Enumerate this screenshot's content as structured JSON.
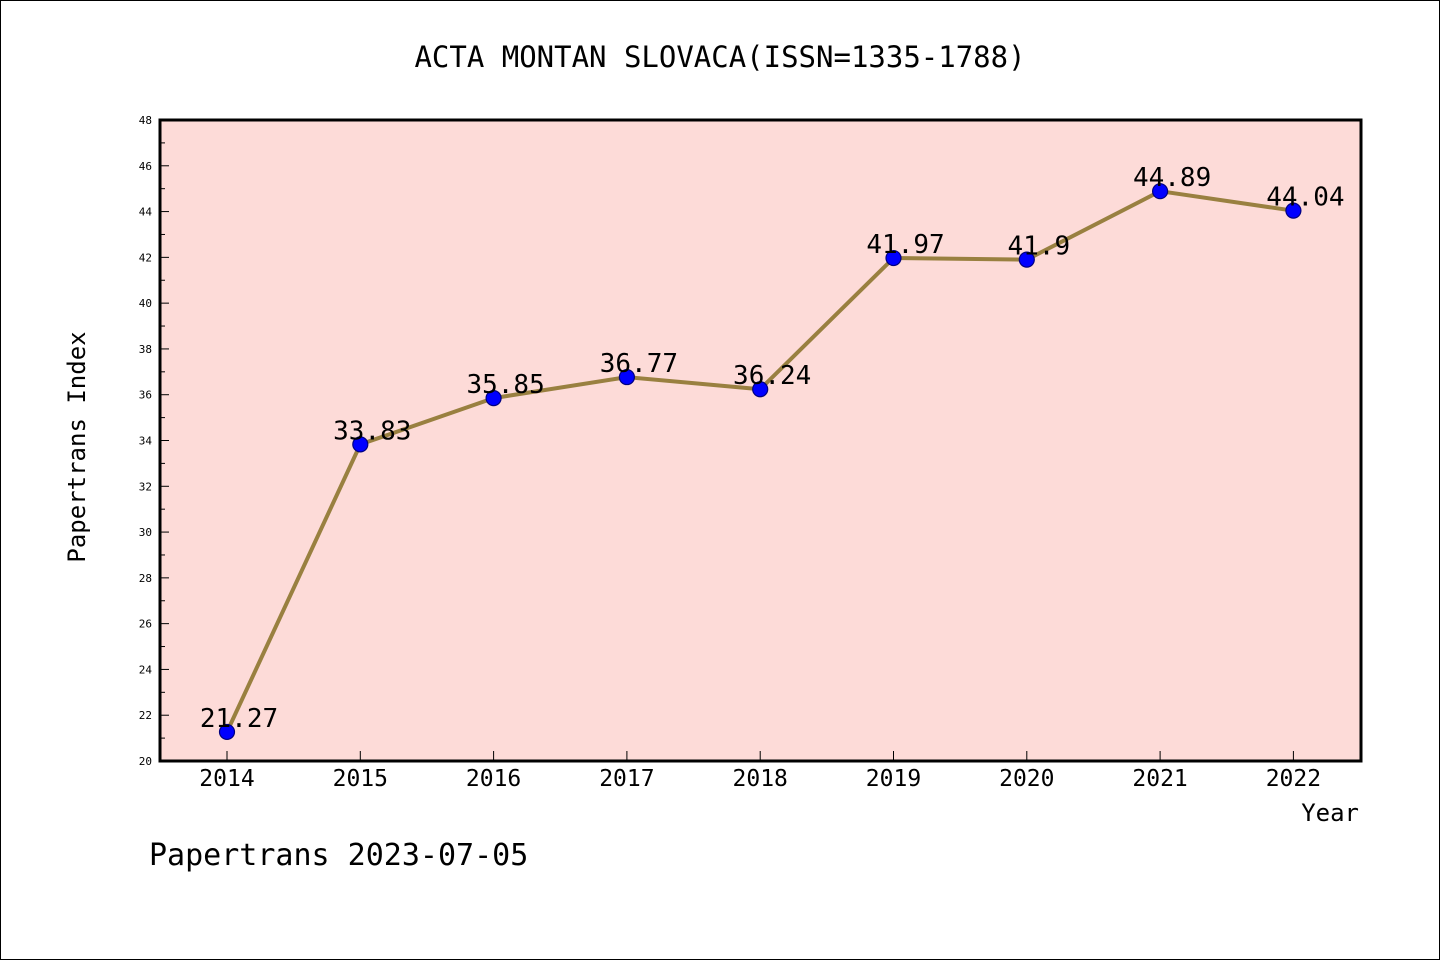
{
  "chart_data": {
    "type": "line",
    "title": "ACTA MONTAN SLOVACA(ISSN=1335-1788)",
    "xlabel": "Year",
    "ylabel": "Papertrans Index",
    "categories": [
      "2014",
      "2015",
      "2016",
      "2017",
      "2018",
      "2019",
      "2020",
      "2021",
      "2022"
    ],
    "series": [
      {
        "values": [
          21.27,
          33.83,
          35.85,
          36.77,
          36.24,
          41.97,
          41.9,
          44.89,
          44.04
        ],
        "labels": [
          "21.27",
          "33.83",
          "35.85",
          "36.77",
          "36.24",
          "41.97",
          "41.9",
          "44.89",
          "44.04"
        ]
      }
    ],
    "ylim": [
      20,
      48
    ],
    "ytick_labels": [
      "20",
      "22",
      "24",
      "26",
      "28",
      "30",
      "32",
      "34",
      "36",
      "38",
      "40",
      "42",
      "44",
      "46",
      "48"
    ],
    "grid": false,
    "legend": "none",
    "footer": "Papertrans 2023-07-05",
    "colors": {
      "plot_background": "#fddbd8",
      "line": "#998040",
      "marker_fill": "#0000ff",
      "marker_edge": "#000080"
    }
  }
}
